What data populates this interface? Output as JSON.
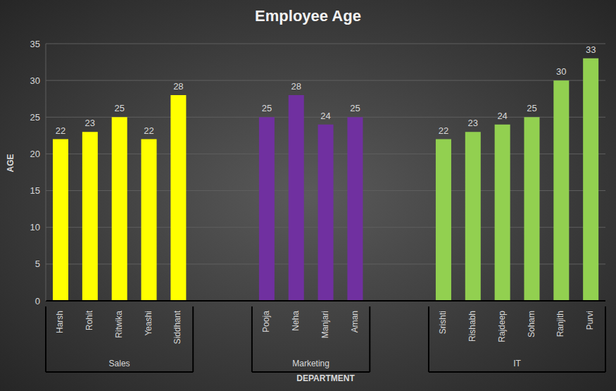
{
  "chart_data": {
    "type": "bar",
    "title": "Employee Age",
    "x_label": "DEPARTMENT",
    "y_label": "AGE",
    "categories": [
      "Harsh",
      "Rohit",
      "Ritwika",
      "Yeashi",
      "Siddhant",
      null,
      null,
      "Pooja",
      "Neha",
      "Manjari",
      "Aman",
      null,
      null,
      "Srishti",
      "Rishabh",
      "Rajdeep",
      "Soham",
      "Ranjith",
      "Purvi"
    ],
    "series": [
      {
        "name": "Sales",
        "color": "#ffff00",
        "values": [
          22,
          23,
          25,
          22,
          28,
          null,
          null,
          null,
          null,
          null,
          null,
          null,
          null,
          null,
          null,
          null,
          null,
          null,
          null
        ]
      },
      {
        "name": "Marketing",
        "color": "#7030a0",
        "values": [
          null,
          null,
          null,
          null,
          null,
          null,
          null,
          25,
          28,
          24,
          25,
          null,
          null,
          null,
          null,
          null,
          null,
          null,
          null
        ]
      },
      {
        "name": "IT",
        "color": "#92d050",
        "values": [
          null,
          null,
          null,
          null,
          null,
          null,
          null,
          null,
          null,
          null,
          null,
          null,
          null,
          22,
          23,
          24,
          25,
          30,
          33
        ]
      }
    ],
    "ylim": [
      0,
      35
    ],
    "yticks": [
      0,
      5,
      10,
      15,
      20,
      25,
      30,
      35
    ],
    "grid": true,
    "data_labels": true
  }
}
